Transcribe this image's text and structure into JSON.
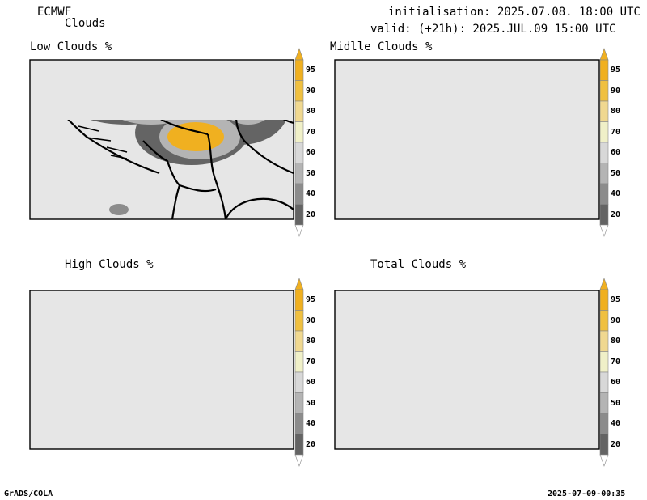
{
  "header": {
    "model": "ECMWF",
    "product": "Clouds",
    "init_line": "initialisation: 2025.07.08. 18:00 UTC",
    "valid_line": "valid: (+21h): 2025.JUL.09 15:00 UTC"
  },
  "panels": [
    {
      "title": "Low Clouds %"
    },
    {
      "title": "Midlle Clouds %"
    },
    {
      "title": "High Clouds %"
    },
    {
      "title": "Total Clouds %"
    }
  ],
  "colorbar": {
    "labels": [
      "95",
      "90",
      "80",
      "70",
      "60",
      "50",
      "40",
      "20"
    ],
    "colors": {
      "c95": "#f0b020",
      "c90": "#f0c040",
      "c80": "#f0d890",
      "c70": "#f0f0c8",
      "c60": "#d8d8d8",
      "c50": "#b4b4b4",
      "c40": "#8c8c8c",
      "c20": "#646464",
      "below": "#ffffff",
      "background": "#e6e6e6"
    }
  },
  "footer": {
    "left": "GrADS/COLA",
    "right": "2025-07-09-00:35"
  }
}
